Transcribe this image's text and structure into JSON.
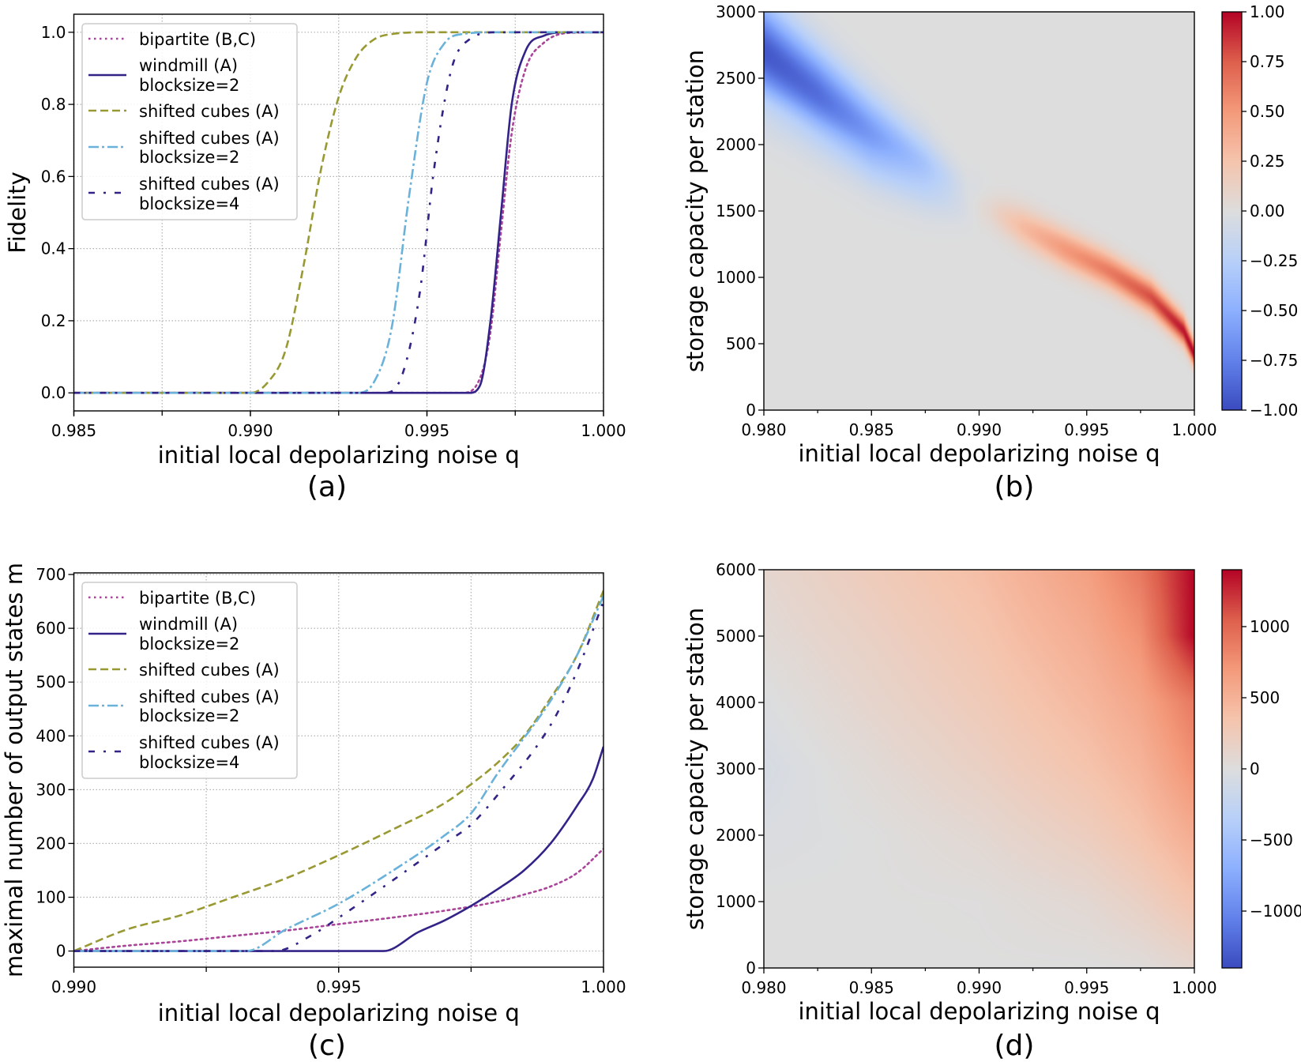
{
  "chart_data": [
    {
      "panel_label": "(a)",
      "type": "line",
      "xlabel": "initial local depolarizing noise q",
      "ylabel": "Fidelity",
      "xlim": [
        0.985,
        1.0
      ],
      "ylim": [
        -0.05,
        1.05
      ],
      "grid": true,
      "grid_x": [
        0.985,
        0.9875,
        0.99,
        0.9925,
        0.995,
        0.9975,
        1.0
      ],
      "xticks": [
        {
          "v": 0.985,
          "label": "0.985"
        },
        {
          "v": 0.99,
          "label": "0.990"
        },
        {
          "v": 0.995,
          "label": "0.995"
        },
        {
          "v": 1.0,
          "label": "1.000"
        }
      ],
      "yticks": [
        {
          "v": 0,
          "label": "0.0"
        },
        {
          "v": 0.2,
          "label": "0.2"
        },
        {
          "v": 0.4,
          "label": "0.4"
        },
        {
          "v": 0.6,
          "label": "0.6"
        },
        {
          "v": 0.8,
          "label": "0.8"
        },
        {
          "v": 1.0,
          "label": "1.0"
        }
      ],
      "legend_placement": "upper-left",
      "series": [
        {
          "name": "bipartite (B,C)",
          "lines": [
            "bipartite (B,C)"
          ],
          "style": "dotted",
          "color": "#aa4499",
          "points": [
            [
              0.985,
              0
            ],
            [
              0.996,
              0
            ],
            [
              0.9965,
              0.04
            ],
            [
              0.9968,
              0.17
            ],
            [
              0.9971,
              0.45
            ],
            [
              0.9974,
              0.72
            ],
            [
              0.9978,
              0.9
            ],
            [
              0.9983,
              0.97
            ],
            [
              0.999,
              0.998
            ],
            [
              1.0,
              1
            ]
          ]
        },
        {
          "name": "windmill (A) blocksize=2",
          "lines": [
            "windmill (A)",
            "blocksize=2"
          ],
          "style": "solid",
          "color": "#332288",
          "points": [
            [
              0.985,
              0
            ],
            [
              0.9962,
              0
            ],
            [
              0.9965,
              0.02
            ],
            [
              0.9968,
              0.2
            ],
            [
              0.9971,
              0.5
            ],
            [
              0.9974,
              0.8
            ],
            [
              0.9978,
              0.95
            ],
            [
              0.9983,
              0.99
            ],
            [
              0.999,
              1
            ],
            [
              1.0,
              1
            ]
          ]
        },
        {
          "name": "shifted cubes (A)",
          "lines": [
            "shifted cubes (A)"
          ],
          "style": "dashed",
          "color": "#999933",
          "points": [
            [
              0.985,
              0
            ],
            [
              0.99,
              0
            ],
            [
              0.9905,
              0.03
            ],
            [
              0.991,
              0.12
            ],
            [
              0.9915,
              0.35
            ],
            [
              0.992,
              0.62
            ],
            [
              0.9925,
              0.82
            ],
            [
              0.993,
              0.93
            ],
            [
              0.9935,
              0.98
            ],
            [
              0.994,
              0.995
            ],
            [
              0.995,
              1
            ],
            [
              1.0,
              1
            ]
          ]
        },
        {
          "name": "shifted cubes (A) blocksize=2",
          "lines": [
            "shifted cubes (A)",
            "blocksize=2"
          ],
          "style": "dashdot",
          "color": "#6ab2da",
          "points": [
            [
              0.985,
              0
            ],
            [
              0.993,
              0
            ],
            [
              0.9935,
              0.03
            ],
            [
              0.994,
              0.18
            ],
            [
              0.9945,
              0.55
            ],
            [
              0.995,
              0.86
            ],
            [
              0.9955,
              0.97
            ],
            [
              0.996,
              0.995
            ],
            [
              0.997,
              1
            ],
            [
              1.0,
              1
            ]
          ]
        },
        {
          "name": "shifted cubes (A) blocksize=4",
          "lines": [
            "shifted cubes (A)",
            "blocksize=4"
          ],
          "style": "loosedashdot",
          "color": "#332288",
          "points": [
            [
              0.985,
              0
            ],
            [
              0.9938,
              0
            ],
            [
              0.9943,
              0.05
            ],
            [
              0.9948,
              0.28
            ],
            [
              0.9952,
              0.62
            ],
            [
              0.9957,
              0.9
            ],
            [
              0.9962,
              0.98
            ],
            [
              0.997,
              1
            ],
            [
              1.0,
              1
            ]
          ]
        }
      ]
    },
    {
      "panel_label": "(b)",
      "type": "heatmap",
      "xlabel": "initial local depolarizing noise q",
      "ylabel": "storage capacity per station",
      "xlim": [
        0.98,
        1.0
      ],
      "ylim": [
        0,
        3000
      ],
      "colormap": "coolwarm",
      "clim": [
        -1.0,
        1.0
      ],
      "xticks": [
        {
          "v": 0.98,
          "label": "0.980"
        },
        {
          "v": 0.985,
          "label": "0.985"
        },
        {
          "v": 0.99,
          "label": "0.990"
        },
        {
          "v": 0.995,
          "label": "0.995"
        },
        {
          "v": 1.0,
          "label": "1.000"
        }
      ],
      "minor_xticks": [
        0.9825,
        0.9875,
        0.9925,
        0.9975
      ],
      "yticks": [
        {
          "v": 0,
          "label": "0"
        },
        {
          "v": 500,
          "label": "500"
        },
        {
          "v": 1000,
          "label": "1000"
        },
        {
          "v": 1500,
          "label": "1500"
        },
        {
          "v": 2000,
          "label": "2000"
        },
        {
          "v": 2500,
          "label": "2500"
        },
        {
          "v": 3000,
          "label": "3000"
        }
      ],
      "colorbar_ticks": [
        {
          "v": 1.0,
          "label": "1.00"
        },
        {
          "v": 0.75,
          "label": "0.75"
        },
        {
          "v": 0.5,
          "label": "0.50"
        },
        {
          "v": 0.25,
          "label": "0.25"
        },
        {
          "v": 0,
          "label": "0.00"
        },
        {
          "v": -0.25,
          "label": "−0.25"
        },
        {
          "v": -0.5,
          "label": "−0.50"
        },
        {
          "v": -0.75,
          "label": "−0.75"
        },
        {
          "v": -1.0,
          "label": "−1.00"
        }
      ],
      "ridges": [
        {
          "name": "negative band",
          "points": [
            [
              0.98,
              2700,
              -0.95,
              360
            ],
            [
              0.9825,
              2380,
              -0.85,
              320
            ],
            [
              0.985,
              2060,
              -0.65,
              290
            ],
            [
              0.9875,
              1800,
              -0.4,
              240
            ],
            [
              0.9895,
              1580,
              -0.1,
              160
            ]
          ]
        },
        {
          "name": "positive band",
          "points": [
            [
              0.9905,
              1500,
              0.08,
              130
            ],
            [
              0.992,
              1380,
              0.3,
              145
            ],
            [
              0.994,
              1210,
              0.5,
              140
            ],
            [
              0.996,
              1050,
              0.63,
              130
            ],
            [
              0.998,
              850,
              0.8,
              120
            ],
            [
              0.9995,
              600,
              0.95,
              105
            ],
            [
              1.0,
              420,
              1.0,
              90
            ]
          ]
        }
      ]
    },
    {
      "panel_label": "(c)",
      "type": "line",
      "xlabel": "initial local depolarizing noise q",
      "ylabel": "maximal number of output states m",
      "xlim": [
        0.99,
        1.0
      ],
      "ylim": [
        -30,
        703
      ],
      "grid": true,
      "grid_x": [
        0.99,
        0.9925,
        0.995,
        0.9975,
        1.0
      ],
      "xticks": [
        {
          "v": 0.99,
          "label": "0.990"
        },
        {
          "v": 0.995,
          "label": "0.995"
        },
        {
          "v": 1.0,
          "label": "1.000"
        }
      ],
      "yticks": [
        {
          "v": 0,
          "label": "0"
        },
        {
          "v": 100,
          "label": "100"
        },
        {
          "v": 200,
          "label": "200"
        },
        {
          "v": 300,
          "label": "300"
        },
        {
          "v": 400,
          "label": "400"
        },
        {
          "v": 500,
          "label": "500"
        },
        {
          "v": 600,
          "label": "600"
        },
        {
          "v": 700,
          "label": "700"
        }
      ],
      "legend_placement": "upper-left",
      "series": [
        {
          "name": "bipartite (B,C)",
          "lines": [
            "bipartite (B,C)"
          ],
          "style": "dotted",
          "color": "#aa4499",
          "points": [
            [
              0.99,
              0
            ],
            [
              0.991,
              10
            ],
            [
              0.992,
              18
            ],
            [
              0.993,
              28
            ],
            [
              0.994,
              38
            ],
            [
              0.995,
              50
            ],
            [
              0.996,
              62
            ],
            [
              0.997,
              75
            ],
            [
              0.998,
              92
            ],
            [
              0.9985,
              105
            ],
            [
              0.999,
              120
            ],
            [
              0.9995,
              145
            ],
            [
              1.0,
              190
            ]
          ]
        },
        {
          "name": "windmill (A) blocksize=2",
          "lines": [
            "windmill (A)",
            "blocksize=2"
          ],
          "style": "solid",
          "color": "#332288",
          "points": [
            [
              0.99,
              0
            ],
            [
              0.99585,
              0
            ],
            [
              0.9965,
              35
            ],
            [
              0.997,
              57
            ],
            [
              0.9975,
              84
            ],
            [
              0.998,
              115
            ],
            [
              0.9985,
              150
            ],
            [
              0.999,
              200
            ],
            [
              0.9995,
              270
            ],
            [
              0.9998,
              320
            ],
            [
              1.0,
              380
            ]
          ]
        },
        {
          "name": "shifted cubes (A)",
          "lines": [
            "shifted cubes (A)"
          ],
          "style": "dashed",
          "color": "#999933",
          "points": [
            [
              0.99,
              0
            ],
            [
              0.991,
              40
            ],
            [
              0.992,
              66
            ],
            [
              0.993,
              100
            ],
            [
              0.994,
              135
            ],
            [
              0.995,
              178
            ],
            [
              0.996,
              225
            ],
            [
              0.997,
              275
            ],
            [
              0.9975,
              310
            ],
            [
              0.998,
              350
            ],
            [
              0.9985,
              400
            ],
            [
              0.999,
              470
            ],
            [
              0.9995,
              550
            ],
            [
              1.0,
              670
            ]
          ]
        },
        {
          "name": "shifted cubes (A) blocksize=2",
          "lines": [
            "shifted cubes (A)",
            "blocksize=2"
          ],
          "style": "dashdot",
          "color": "#6ab2da",
          "points": [
            [
              0.99,
              0
            ],
            [
              0.99325,
              0
            ],
            [
              0.994,
              40
            ],
            [
              0.995,
              88
            ],
            [
              0.996,
              148
            ],
            [
              0.997,
              215
            ],
            [
              0.9975,
              256
            ],
            [
              0.998,
              330
            ],
            [
              0.999,
              465
            ],
            [
              0.9995,
              550
            ],
            [
              1.0,
              660
            ]
          ]
        },
        {
          "name": "shifted cubes (A) blocksize=4",
          "lines": [
            "shifted cubes (A)",
            "blocksize=4"
          ],
          "style": "loosedashdot",
          "color": "#332288",
          "points": [
            [
              0.99,
              0
            ],
            [
              0.9938,
              0
            ],
            [
              0.9945,
              30
            ],
            [
              0.995,
              62
            ],
            [
              0.996,
              130
            ],
            [
              0.997,
              200
            ],
            [
              0.9975,
              235
            ],
            [
              0.998,
              290
            ],
            [
              0.999,
              420
            ],
            [
              0.9995,
              520
            ],
            [
              1.0,
              650
            ]
          ]
        }
      ]
    },
    {
      "panel_label": "(d)",
      "type": "heatmap",
      "xlabel": "initial local depolarizing noise q",
      "ylabel": "storage capacity per station",
      "xlim": [
        0.98,
        1.0
      ],
      "ylim": [
        0,
        6000
      ],
      "colormap": "coolwarm",
      "clim": [
        -1400,
        1400
      ],
      "xticks": [
        {
          "v": 0.98,
          "label": "0.980"
        },
        {
          "v": 0.985,
          "label": "0.985"
        },
        {
          "v": 0.99,
          "label": "0.990"
        },
        {
          "v": 0.995,
          "label": "0.995"
        },
        {
          "v": 1.0,
          "label": "1.000"
        }
      ],
      "minor_xticks": [
        0.9825,
        0.9875,
        0.9925,
        0.9975
      ],
      "yticks": [
        {
          "v": 0,
          "label": "0"
        },
        {
          "v": 1000,
          "label": "1000"
        },
        {
          "v": 2000,
          "label": "2000"
        },
        {
          "v": 3000,
          "label": "3000"
        },
        {
          "v": 4000,
          "label": "4000"
        },
        {
          "v": 5000,
          "label": "5000"
        },
        {
          "v": 6000,
          "label": "6000"
        }
      ],
      "colorbar_ticks": [
        {
          "v": 1000,
          "label": "1000"
        },
        {
          "v": 500,
          "label": "500"
        },
        {
          "v": 0,
          "label": "0"
        },
        {
          "v": -500,
          "label": "−500"
        },
        {
          "v": -1000,
          "label": "−1000"
        }
      ],
      "grid_q": [
        0.98,
        0.985,
        0.99,
        0.995,
        0.9975,
        1.0
      ],
      "grid_storage": [
        0,
        1000,
        2000,
        3000,
        4000,
        5000,
        6000
      ],
      "values": [
        [
          0,
          0,
          0,
          0,
          20,
          100
        ],
        [
          0,
          0,
          10,
          80,
          180,
          350
        ],
        [
          -30,
          0,
          80,
          220,
          350,
          550
        ],
        [
          -70,
          50,
          180,
          350,
          480,
          750
        ],
        [
          -20,
          120,
          260,
          450,
          600,
          900
        ],
        [
          50,
          180,
          330,
          550,
          750,
          1400
        ],
        [
          100,
          250,
          400,
          650,
          900,
          1400
        ]
      ]
    }
  ]
}
